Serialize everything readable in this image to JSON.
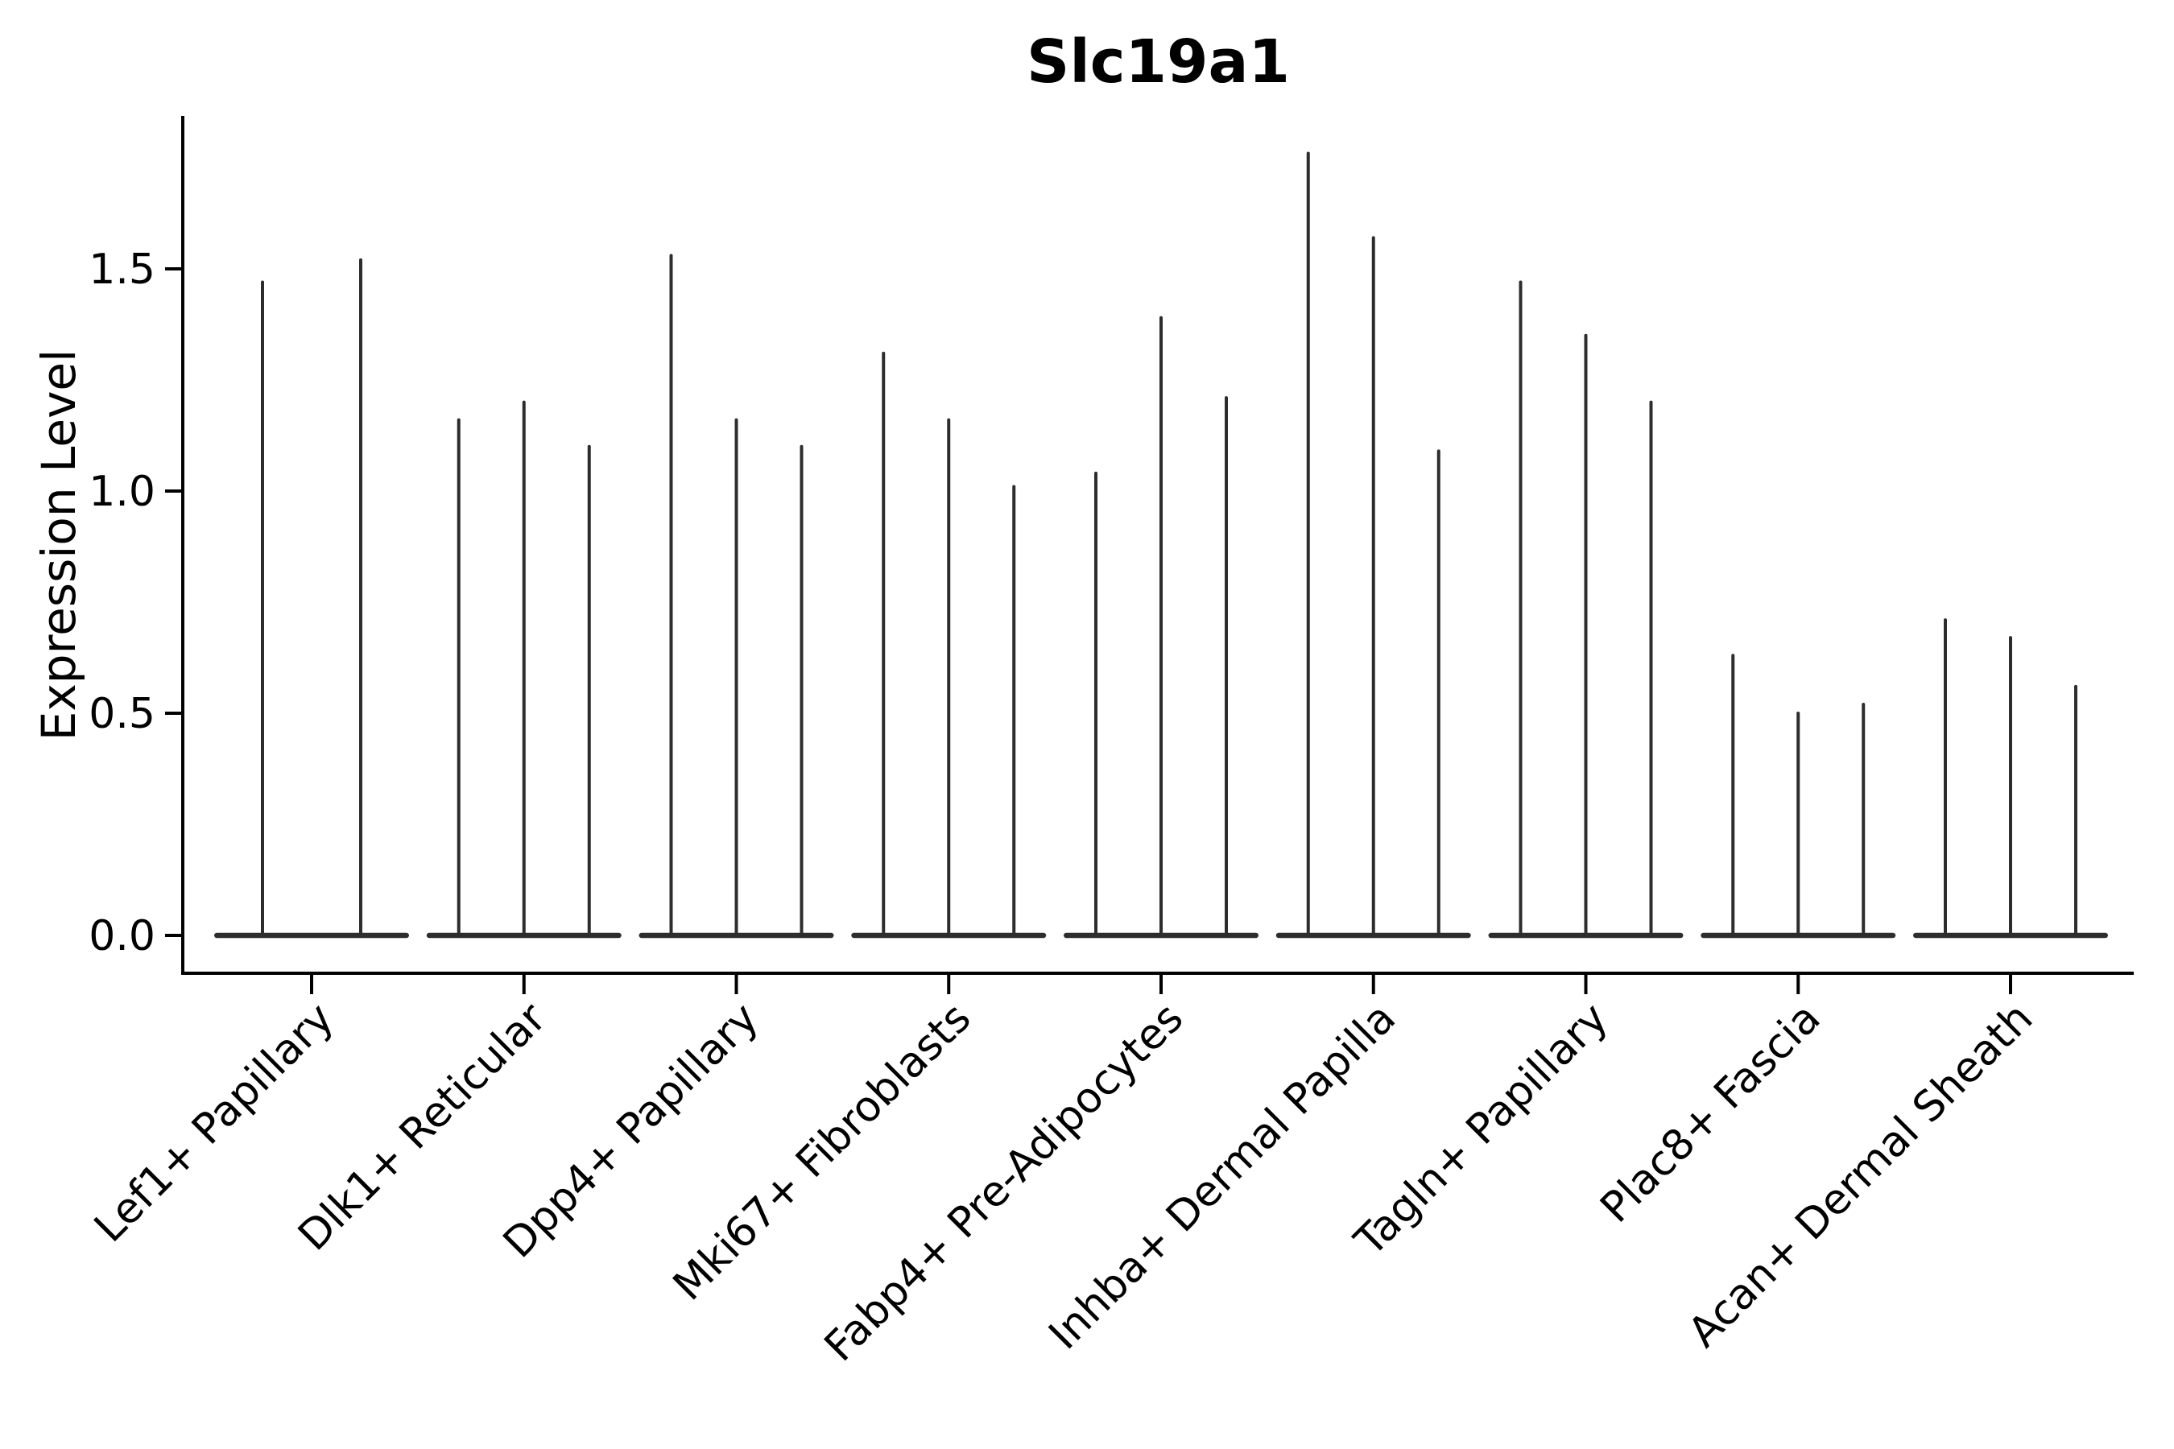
{
  "chart_data": {
    "type": "violin",
    "title": "Slc19a1",
    "ylabel": "Expression Level",
    "xlabel": "",
    "yticks": [
      0.0,
      0.5,
      1.0,
      1.5
    ],
    "ytick_labels": [
      "0.0",
      "0.5",
      "1.0",
      "1.5"
    ],
    "ylim": [
      -0.09,
      1.85
    ],
    "grid": false,
    "legend": "none",
    "violin_color": "#2d2d2d",
    "axis_color": "#000000",
    "groups": [
      {
        "label": "Lef1+ Papillary",
        "violin_max_values": [
          1.47,
          1.52
        ]
      },
      {
        "label": "Dlk1+ Reticular",
        "violin_max_values": [
          1.16,
          1.2,
          1.1
        ]
      },
      {
        "label": "Dpp4+ Papillary",
        "violin_max_values": [
          1.53,
          1.16,
          1.1
        ]
      },
      {
        "label": "Mki67+ Fibroblasts",
        "violin_max_values": [
          1.31,
          1.16,
          1.01
        ]
      },
      {
        "label": "Fabp4+ Pre-Adipocytes",
        "violin_max_values": [
          1.04,
          1.39,
          1.21
        ]
      },
      {
        "label": "Inhba+ Dermal Papilla",
        "violin_max_values": [
          1.76,
          1.57,
          1.09
        ]
      },
      {
        "label": "Tagln+ Papillary",
        "violin_max_values": [
          1.47,
          1.35,
          1.2
        ]
      },
      {
        "label": "Plac8+ Fascia",
        "violin_max_values": [
          0.63,
          0.5,
          0.52
        ]
      },
      {
        "label": "Acan+ Dermal Sheath",
        "violin_max_values": [
          0.71,
          0.67,
          0.56
        ]
      }
    ]
  }
}
